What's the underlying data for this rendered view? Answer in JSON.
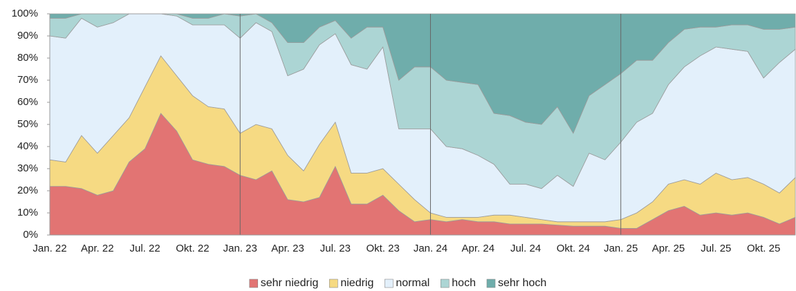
{
  "chart_data": {
    "type": "stacked_area_percent",
    "categories": [
      "Jan. 22",
      null,
      null,
      "Apr. 22",
      null,
      null,
      "Jul. 22",
      null,
      null,
      "Okt. 22",
      null,
      null,
      "Jan. 23",
      null,
      null,
      "Apr. 23",
      null,
      null,
      "Jul. 23",
      null,
      null,
      "Okt. 23",
      null,
      null,
      "Jan. 24",
      null,
      null,
      "Apr. 24",
      null,
      null,
      "Jul. 24",
      null,
      null,
      "Okt. 24",
      null,
      null,
      "Jan. 25",
      null,
      null,
      "Apr. 25",
      null,
      null,
      "Jul. 25",
      null,
      null,
      "Okt. 25",
      null,
      null
    ],
    "series": [
      {
        "name": "sehr niedrig",
        "color": "#e27473",
        "values": [
          22,
          22,
          21,
          18,
          20,
          33,
          39,
          55,
          47,
          34,
          32,
          31,
          27,
          25,
          29,
          16,
          15,
          17,
          31,
          14,
          14,
          18,
          11,
          6,
          7,
          6,
          7,
          6,
          6,
          5,
          5,
          5,
          4.5,
          4,
          4,
          4,
          3,
          3,
          7,
          11,
          13,
          9,
          10,
          9,
          10,
          8,
          5,
          8
        ]
      },
      {
        "name": "niedrig",
        "color": "#f6da83",
        "values": [
          12,
          11,
          24,
          19,
          25,
          20,
          28,
          26,
          25,
          29,
          26,
          26,
          19,
          25,
          19,
          20,
          14,
          24,
          20,
          14,
          14,
          12,
          12,
          10,
          3,
          2,
          1,
          2,
          3,
          4,
          3,
          2,
          1.5,
          2,
          2,
          2,
          4,
          7,
          8,
          12,
          12,
          14,
          18,
          16,
          16,
          15,
          14,
          18
        ]
      },
      {
        "name": "normal",
        "color": "#e3f0fb",
        "values": [
          56,
          56,
          53,
          57,
          51,
          47,
          33,
          19,
          27,
          32,
          37,
          38,
          43,
          46,
          44,
          36,
          46,
          45,
          40,
          49,
          47,
          55,
          25,
          32,
          38,
          32,
          31,
          28,
          23,
          14,
          15,
          14,
          21,
          16,
          31,
          28,
          35,
          41,
          40,
          45,
          51,
          58,
          57,
          59,
          57,
          48,
          59,
          58
        ]
      },
      {
        "name": "hoch",
        "color": "#acd5d4",
        "values": [
          8,
          9,
          2,
          6,
          4,
          0,
          0,
          0,
          1,
          3,
          3,
          5,
          10,
          4,
          4,
          15,
          12,
          8,
          6,
          12,
          19,
          9,
          22,
          28,
          28,
          30,
          30,
          32,
          23,
          31,
          28,
          29,
          31,
          24,
          26,
          34,
          31,
          28,
          24,
          19,
          17,
          13,
          9,
          11,
          12,
          22,
          15,
          10
        ]
      },
      {
        "name": "sehr hoch",
        "color": "#6fadab",
        "values": [
          2,
          2,
          0,
          0,
          0,
          0,
          0,
          0,
          0,
          2,
          2,
          0,
          1,
          0,
          4,
          13,
          13,
          6,
          3,
          11,
          6,
          6,
          30,
          24,
          24,
          30,
          31,
          32,
          45,
          46,
          49,
          50,
          42,
          54,
          37,
          32,
          27,
          21,
          21,
          13,
          7,
          6,
          6,
          5,
          5,
          7,
          7,
          6
        ]
      }
    ],
    "ylim": [
      0,
      100
    ],
    "yticks": [
      {
        "value": 0,
        "label": "0%"
      },
      {
        "value": 10,
        "label": "10%"
      },
      {
        "value": 20,
        "label": "20%"
      },
      {
        "value": 30,
        "label": "30%"
      },
      {
        "value": 40,
        "label": "40%"
      },
      {
        "value": 50,
        "label": "50%"
      },
      {
        "value": 60,
        "label": "60%"
      },
      {
        "value": 70,
        "label": "70%"
      },
      {
        "value": 80,
        "label": "80%"
      },
      {
        "value": 90,
        "label": "90%"
      },
      {
        "value": 100,
        "label": "100%"
      }
    ],
    "legend": "bottom"
  }
}
